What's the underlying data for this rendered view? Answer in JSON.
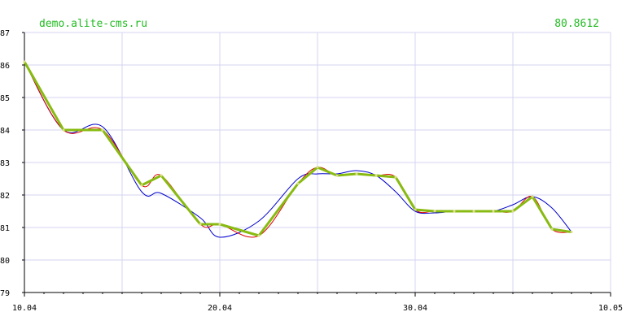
{
  "header": {
    "site": "demo.alite-cms.ru",
    "last_value": "80.8612"
  },
  "colors": {
    "background": "#ffffff",
    "grid": "#d4d4f0",
    "axis": "#000000",
    "header_text": "#22bb22",
    "series_red": "#dd0000",
    "series_blue": "#0000cc",
    "series_green": "#88bb11"
  },
  "chart_data": {
    "type": "line",
    "title": "",
    "xlabel": "",
    "ylabel": "",
    "ylim": [
      79,
      87
    ],
    "xlim": [
      "10.04",
      "10.05"
    ],
    "yticks": [
      79,
      80,
      81,
      82,
      83,
      84,
      85,
      86,
      87
    ],
    "xticks": [
      "10.04",
      "20.04",
      "30.04",
      "10.05"
    ],
    "grid": true,
    "legend": false,
    "x_dates": [
      "10.04",
      "12.04",
      "14.04",
      "16.04",
      "17.04",
      "19.04",
      "20.04",
      "22.04",
      "24.04",
      "25.04",
      "26.04",
      "27.04",
      "28.04",
      "29.04",
      "30.04",
      "01.05",
      "02.05",
      "03.05",
      "04.05",
      "05.05",
      "06.05",
      "07.05",
      "08.05"
    ],
    "values": [
      86.1,
      84.0,
      84.0,
      82.3,
      82.6,
      81.1,
      81.1,
      80.75,
      82.35,
      82.85,
      82.6,
      82.65,
      82.6,
      82.55,
      81.55,
      81.5,
      81.5,
      81.5,
      81.5,
      81.5,
      81.95,
      80.95,
      80.8612
    ],
    "series": [
      {
        "values": [
          86.1,
          84.0,
          84.0,
          82.3,
          82.6,
          81.1,
          81.1,
          80.75,
          82.35,
          82.85,
          82.6,
          82.65,
          82.6,
          82.55,
          81.55,
          81.5,
          81.5,
          81.5,
          81.5,
          81.5,
          81.95,
          80.95,
          80.8612
        ],
        "color": "#88bb11",
        "style": "polyline"
      },
      {
        "values": [
          86.1,
          84.0,
          84.0,
          82.3,
          82.6,
          81.1,
          81.1,
          80.75,
          82.35,
          82.85,
          82.6,
          82.65,
          82.6,
          82.55,
          81.55,
          81.5,
          81.5,
          81.5,
          81.5,
          81.5,
          81.95,
          80.95,
          80.8612
        ],
        "color": "#dd0000",
        "style": "spline"
      },
      {
        "values": [
          86.1,
          84.0,
          84.1,
          82.1,
          82.05,
          81.3,
          80.7,
          81.2,
          82.5,
          82.65,
          82.65,
          82.75,
          82.6,
          82.1,
          81.5,
          81.45,
          81.5,
          81.5,
          81.5,
          81.7,
          81.95,
          81.6,
          80.8612
        ],
        "color": "#0000cc",
        "style": "spline"
      }
    ]
  }
}
